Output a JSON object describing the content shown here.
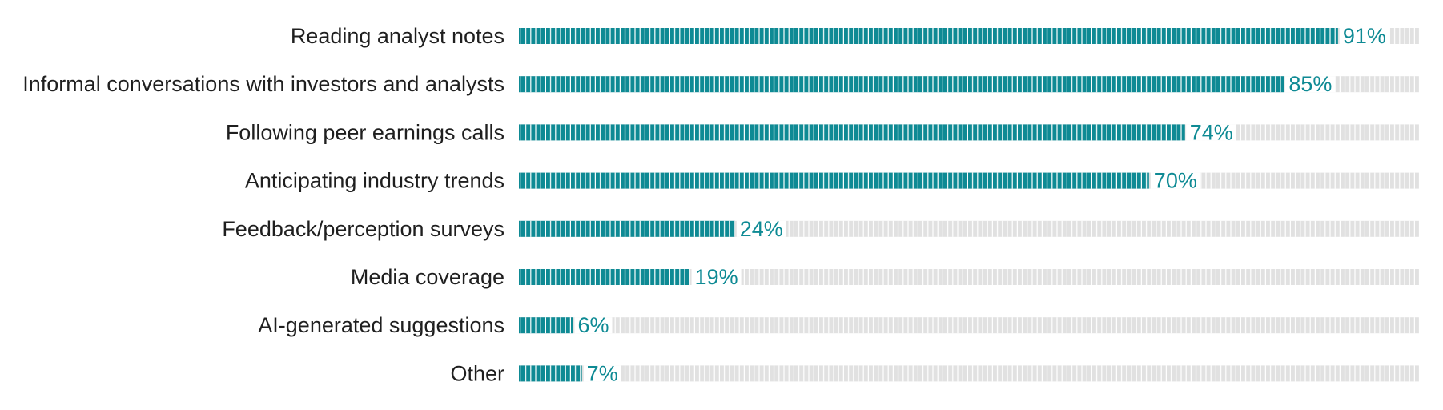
{
  "chart_data": {
    "type": "bar",
    "orientation": "horizontal",
    "categories": [
      "Reading analyst notes",
      "Informal conversations with investors and analysts",
      "Following peer earnings calls",
      "Anticipating industry trends",
      "Feedback/perception surveys",
      "Media coverage",
      "AI-generated suggestions",
      "Other"
    ],
    "values": [
      91,
      85,
      74,
      70,
      24,
      19,
      6,
      7
    ],
    "value_labels": [
      "91%",
      "85%",
      "74%",
      "70%",
      "24%",
      "19%",
      "6%",
      "7%"
    ],
    "xlim": [
      0,
      100
    ],
    "unit": "%",
    "grid": false,
    "legend": "none",
    "colors": {
      "bar": "#0e8a94",
      "track": "#e1e1e1",
      "segment_divider": "#ffffff",
      "label": "#1f1f1f",
      "value_label": "#0e8a94"
    }
  }
}
